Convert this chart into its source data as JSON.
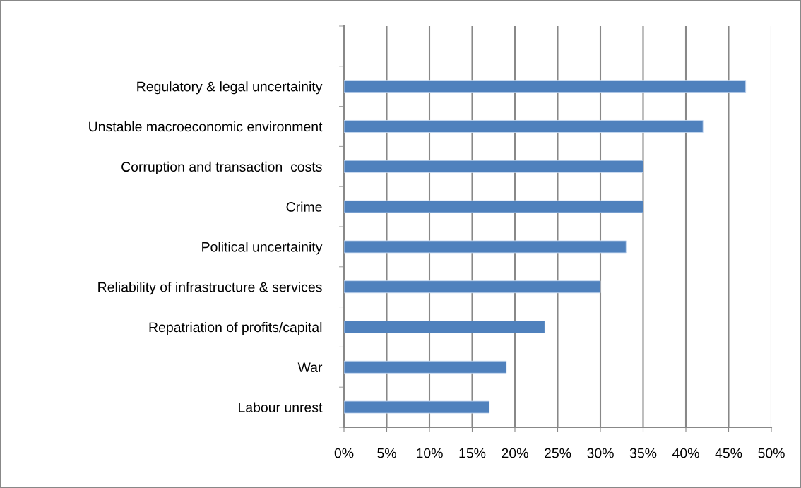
{
  "chart_data": {
    "type": "bar",
    "orientation": "horizontal",
    "categories": [
      null,
      "Regulatory & legal uncertainity",
      "Unstable macroeconomic environment",
      "Corruption and transaction  costs",
      "Crime",
      "Political uncertainity",
      "Reliability of infrastructure & services",
      "Repatriation of profits/capital",
      "War",
      "Labour unrest"
    ],
    "values": [
      null,
      47,
      42,
      35,
      35,
      33,
      30,
      23.5,
      19,
      17
    ],
    "color": "#4f81bd",
    "xlim": [
      0,
      50
    ],
    "xticks": [
      {
        "value": 0,
        "label": "0%"
      },
      {
        "value": 5,
        "label": "5%"
      },
      {
        "value": 10,
        "label": "10%"
      },
      {
        "value": 15,
        "label": "15%"
      },
      {
        "value": 20,
        "label": "20%"
      },
      {
        "value": 25,
        "label": "25%"
      },
      {
        "value": 30,
        "label": "30%"
      },
      {
        "value": 35,
        "label": "35%"
      },
      {
        "value": 40,
        "label": "40%"
      },
      {
        "value": 45,
        "label": "45%"
      },
      {
        "value": 50,
        "label": "50%"
      }
    ],
    "grid": "x"
  }
}
